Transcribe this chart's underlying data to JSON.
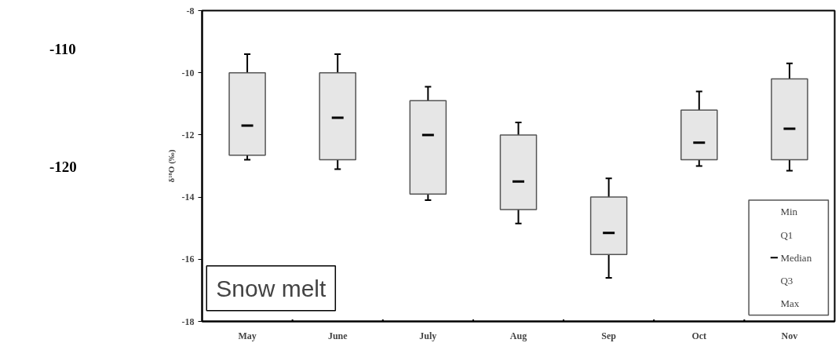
{
  "chart_data": {
    "type": "box",
    "categories": [
      "May",
      "June",
      "July",
      "Aug",
      "Sep",
      "Oct",
      "Nov"
    ],
    "boxes": [
      {
        "low": -12.8,
        "q1": -12.65,
        "median": -11.7,
        "q3": -10.0,
        "high": -9.4
      },
      {
        "low": -13.1,
        "q1": -12.8,
        "median": -11.45,
        "q3": -10.0,
        "high": -9.4
      },
      {
        "low": -14.1,
        "q1": -13.9,
        "median": -12.0,
        "q3": -10.9,
        "high": -10.45
      },
      {
        "low": -14.85,
        "q1": -14.4,
        "median": -13.5,
        "q3": -12.0,
        "high": -11.6
      },
      {
        "low": -16.6,
        "q1": -15.85,
        "median": -15.15,
        "q3": -14.0,
        "high": -13.4
      },
      {
        "low": -13.0,
        "q1": -12.8,
        "median": -12.25,
        "q3": -11.2,
        "high": -10.6
      },
      {
        "low": -13.15,
        "q1": -12.8,
        "median": -11.8,
        "q3": -10.2,
        "high": -9.7
      }
    ],
    "color": "#e6e6e6",
    "ylabel": "δ¹⁸O (‰)",
    "ylim": [
      -18,
      -8
    ],
    "yticks": [
      -18,
      -16,
      -14,
      -12,
      -10,
      -8
    ],
    "grid": false,
    "annotations": [
      "Snow melt",
      "-110",
      "-120",
      "Min",
      "Q1",
      "Median",
      "Q3",
      "Max"
    ]
  }
}
